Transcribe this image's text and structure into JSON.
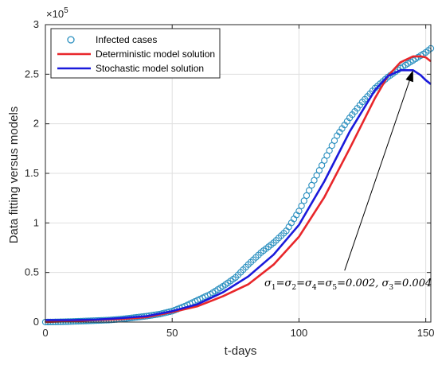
{
  "chart_data": {
    "type": "line",
    "xlabel": "t-days",
    "ylabel": "Data fitting versus models",
    "exponent_label": "×10",
    "exponent_power": "5",
    "xlim": [
      0,
      152
    ],
    "ylim": [
      0,
      3
    ],
    "xticks": [
      0,
      50,
      100,
      150
    ],
    "yticks": [
      0,
      0.5,
      1,
      1.5,
      2,
      2.5,
      3
    ],
    "xtick_labels": [
      "0",
      "50",
      "100",
      "150"
    ],
    "ytick_labels": [
      "0",
      "0.5",
      "1",
      "1.5",
      "2",
      "2.5",
      "3"
    ],
    "grid": true,
    "legend_position": "top-left",
    "series": [
      {
        "name": "Infected cases",
        "style": "markers",
        "color": "#2a8fbf",
        "x": [
          0,
          5,
          10,
          15,
          20,
          25,
          30,
          35,
          40,
          45,
          50,
          55,
          60,
          65,
          70,
          75,
          80,
          85,
          90,
          95,
          100,
          105,
          110,
          115,
          120,
          125,
          130,
          135,
          140,
          145,
          150,
          152
        ],
        "y": [
          0,
          0.002,
          0.005,
          0.01,
          0.015,
          0.02,
          0.03,
          0.045,
          0.06,
          0.08,
          0.11,
          0.16,
          0.22,
          0.28,
          0.36,
          0.45,
          0.58,
          0.7,
          0.8,
          0.92,
          1.12,
          1.38,
          1.63,
          1.88,
          2.06,
          2.22,
          2.36,
          2.47,
          2.56,
          2.64,
          2.72,
          2.76
        ]
      },
      {
        "name": "Deterministic model solution",
        "style": "line",
        "color": "#e8262a",
        "x": [
          0,
          10,
          20,
          30,
          40,
          50,
          60,
          70,
          80,
          90,
          100,
          110,
          120,
          130,
          135,
          140,
          145,
          148,
          150,
          152
        ],
        "y": [
          0,
          0.01,
          0.02,
          0.03,
          0.05,
          0.1,
          0.16,
          0.26,
          0.38,
          0.58,
          0.86,
          1.26,
          1.75,
          2.26,
          2.48,
          2.62,
          2.68,
          2.68,
          2.67,
          2.63
        ]
      },
      {
        "name": "Stochastic model solution",
        "style": "line",
        "color": "#1a1adb",
        "x": [
          0,
          10,
          20,
          30,
          40,
          50,
          60,
          70,
          80,
          90,
          100,
          110,
          120,
          130,
          135,
          140,
          145,
          148,
          150,
          152
        ],
        "y": [
          0.02,
          0.02,
          0.025,
          0.04,
          0.06,
          0.11,
          0.18,
          0.3,
          0.46,
          0.68,
          0.98,
          1.42,
          1.92,
          2.34,
          2.48,
          2.54,
          2.54,
          2.49,
          2.44,
          2.4
        ]
      }
    ],
    "annotation": {
      "text_parts": [
        "σ",
        "1",
        "=σ",
        "2",
        "=σ",
        "4",
        "=σ",
        "5",
        "=0.002, σ",
        "3",
        "=0.004"
      ],
      "arrow_from": [
        118,
        0.52
      ],
      "arrow_to": [
        145,
        2.54
      ]
    }
  }
}
